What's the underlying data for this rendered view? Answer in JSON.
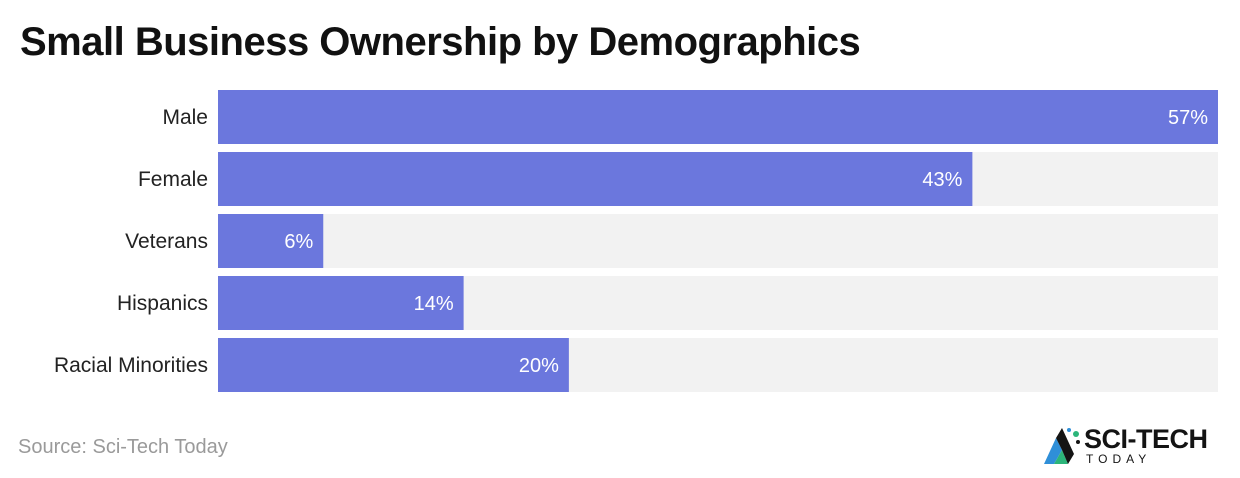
{
  "title": "Small Business Ownership by Demographics",
  "source": "Source: Sci-Tech Today",
  "logo": {
    "main": "SCI-TECH",
    "sub": "TODAY"
  },
  "colors": {
    "bar": "#6b77dd",
    "track": "#f2f2f2",
    "value_text": "#ffffff"
  },
  "chart_data": {
    "type": "bar",
    "orientation": "horizontal",
    "categories": [
      "Male",
      "Female",
      "Veterans",
      "Hispanics",
      "Racial Minorities"
    ],
    "values": [
      57,
      43,
      6,
      14,
      20
    ],
    "value_labels": [
      "57%",
      "43%",
      "6%",
      "14%",
      "20%"
    ],
    "xlim": [
      0,
      57
    ],
    "grid": false
  }
}
